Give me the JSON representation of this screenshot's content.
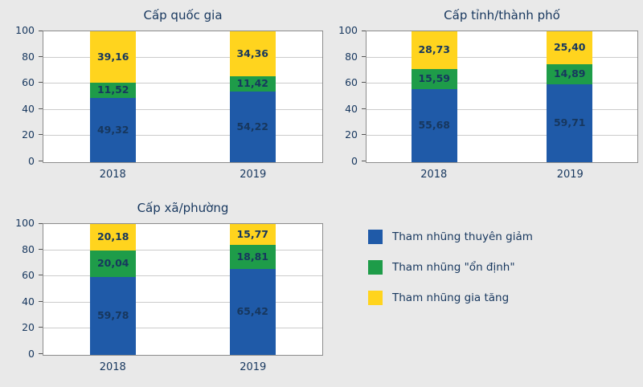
{
  "page": {
    "background": "#e9e9e9",
    "text_color": "#17375e"
  },
  "colors": {
    "blue": "#1f5aa8",
    "green": "#1e9c49",
    "yellow": "#ffd41e"
  },
  "legend": {
    "items": [
      {
        "label": "Tham nhũng thuyên giảm",
        "color": "#1f5aa8"
      },
      {
        "label": "Tham nhũng \"ổn định\"",
        "color": "#1e9c49"
      },
      {
        "label": "Tham nhũng gia tăng",
        "color": "#ffd41e"
      }
    ]
  },
  "chart_data": [
    {
      "type": "bar",
      "stacked": true,
      "title": "Cấp quốc gia",
      "categories": [
        "2018",
        "2019"
      ],
      "xlabel": "",
      "ylabel": "",
      "ylim": [
        0,
        100
      ],
      "yticks": [
        0,
        20,
        40,
        60,
        80,
        100
      ],
      "grid": true,
      "series": [
        {
          "name": "Tham nhũng thuyên giảm",
          "color": "#1f5aa8",
          "values": [
            49.32,
            54.22
          ],
          "labels": [
            "49,32",
            "54,22"
          ]
        },
        {
          "name": "Tham nhũng \"ổn định\"",
          "color": "#1e9c49",
          "values": [
            11.52,
            11.42
          ],
          "labels": [
            "11,52",
            "11,42"
          ]
        },
        {
          "name": "Tham nhũng gia tăng",
          "color": "#ffd41e",
          "values": [
            39.16,
            34.36
          ],
          "labels": [
            "39,16",
            "34,36"
          ]
        }
      ]
    },
    {
      "type": "bar",
      "stacked": true,
      "title": "Cấp tỉnh/thành phố",
      "categories": [
        "2018",
        "2019"
      ],
      "xlabel": "",
      "ylabel": "",
      "ylim": [
        0,
        100
      ],
      "yticks": [
        0,
        20,
        40,
        60,
        80,
        100
      ],
      "grid": true,
      "series": [
        {
          "name": "Tham nhũng thuyên giảm",
          "color": "#1f5aa8",
          "values": [
            55.68,
            59.71
          ],
          "labels": [
            "55,68",
            "59,71"
          ]
        },
        {
          "name": "Tham nhũng \"ổn định\"",
          "color": "#1e9c49",
          "values": [
            15.59,
            14.89
          ],
          "labels": [
            "15,59",
            "14,89"
          ]
        },
        {
          "name": "Tham nhũng gia tăng",
          "color": "#ffd41e",
          "values": [
            28.73,
            25.4
          ],
          "labels": [
            "28,73",
            "25,40"
          ]
        }
      ]
    },
    {
      "type": "bar",
      "stacked": true,
      "title": "Cấp xã/phường",
      "categories": [
        "2018",
        "2019"
      ],
      "xlabel": "",
      "ylabel": "",
      "ylim": [
        0,
        100
      ],
      "yticks": [
        0,
        20,
        40,
        60,
        80,
        100
      ],
      "grid": true,
      "series": [
        {
          "name": "Tham nhũng thuyên giảm",
          "color": "#1f5aa8",
          "values": [
            59.78,
            65.42
          ],
          "labels": [
            "59,78",
            "65,42"
          ]
        },
        {
          "name": "Tham nhũng \"ổn định\"",
          "color": "#1e9c49",
          "values": [
            20.04,
            18.81
          ],
          "labels": [
            "20,04",
            "18,81"
          ]
        },
        {
          "name": "Tham nhũng gia tăng",
          "color": "#ffd41e",
          "values": [
            20.18,
            15.77
          ],
          "labels": [
            "20,18",
            "15,77"
          ]
        }
      ]
    }
  ]
}
